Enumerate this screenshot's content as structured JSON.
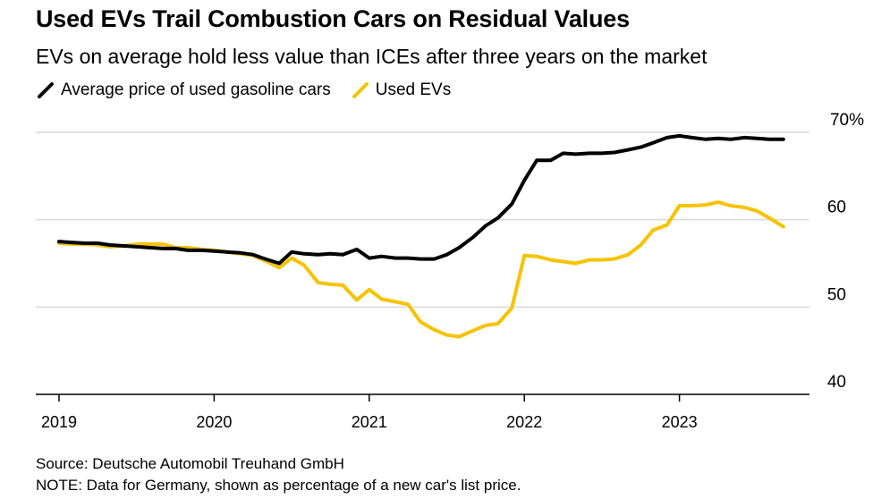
{
  "title": "Used EVs Trail Combustion Cars on Residual Values",
  "subtitle": "EVs on average hold less value than ICEs after three years on the market",
  "source": "Source: Deutsche Automobil Treuhand GmbH",
  "note": "NOTE: Data for Germany, shown as percentage of a new car's list price.",
  "chart_data": {
    "type": "line",
    "xlim": [
      2019.0,
      2024.0
    ],
    "ylim": [
      40,
      70
    ],
    "y_ticks": [
      40,
      50,
      60,
      70
    ],
    "y_tick_labels": [
      "40",
      "50",
      "60",
      "70%"
    ],
    "x_ticks": [
      2019,
      2020,
      2021,
      2022,
      2023
    ],
    "x_tick_labels": [
      "2019",
      "2020",
      "2021",
      "2022",
      "2023"
    ],
    "grid": true,
    "legend_position": "top-left",
    "series": [
      {
        "name": "Average price of used gasoline cars",
        "color": "#000000",
        "x": [
          2019.0,
          2019.08,
          2019.17,
          2019.25,
          2019.33,
          2019.42,
          2019.5,
          2019.58,
          2019.67,
          2019.75,
          2019.83,
          2019.92,
          2020.0,
          2020.08,
          2020.17,
          2020.25,
          2020.33,
          2020.42,
          2020.5,
          2020.58,
          2020.67,
          2020.75,
          2020.83,
          2020.92,
          2021.0,
          2021.08,
          2021.17,
          2021.25,
          2021.33,
          2021.42,
          2021.5,
          2021.58,
          2021.67,
          2021.75,
          2021.83,
          2021.92,
          2022.0,
          2022.08,
          2022.17,
          2022.25,
          2022.33,
          2022.42,
          2022.5,
          2022.58,
          2022.67,
          2022.75,
          2022.83,
          2022.92,
          2023.0,
          2023.08,
          2023.17,
          2023.25,
          2023.33,
          2023.42,
          2023.5,
          2023.58,
          2023.67
        ],
        "values": [
          57.5,
          57.4,
          57.3,
          57.3,
          57.1,
          57.0,
          56.9,
          56.8,
          56.7,
          56.7,
          56.5,
          56.5,
          56.4,
          56.3,
          56.2,
          56.0,
          55.5,
          55.0,
          56.3,
          56.1,
          56.0,
          56.1,
          56.0,
          56.6,
          55.6,
          55.8,
          55.6,
          55.6,
          55.5,
          55.5,
          56.0,
          56.8,
          58.0,
          59.3,
          60.2,
          61.8,
          64.5,
          66.8,
          66.8,
          67.6,
          67.5,
          67.6,
          67.6,
          67.7,
          68.0,
          68.3,
          68.8,
          69.4,
          69.6,
          69.4,
          69.2,
          69.3,
          69.2,
          69.4,
          69.3,
          69.2,
          69.2
        ]
      },
      {
        "name": "Used EVs",
        "color": "#f5c300",
        "x": [
          2019.0,
          2019.08,
          2019.17,
          2019.25,
          2019.33,
          2019.42,
          2019.5,
          2019.58,
          2019.67,
          2019.75,
          2019.83,
          2019.92,
          2020.0,
          2020.08,
          2020.17,
          2020.25,
          2020.33,
          2020.42,
          2020.5,
          2020.58,
          2020.67,
          2020.75,
          2020.83,
          2020.92,
          2021.0,
          2021.08,
          2021.17,
          2021.25,
          2021.33,
          2021.42,
          2021.5,
          2021.58,
          2021.67,
          2021.75,
          2021.83,
          2021.92,
          2022.0,
          2022.08,
          2022.17,
          2022.25,
          2022.33,
          2022.42,
          2022.5,
          2022.58,
          2022.67,
          2022.75,
          2022.83,
          2022.92,
          2023.0,
          2023.08,
          2023.17,
          2023.25,
          2023.33,
          2023.42,
          2023.5,
          2023.58,
          2023.67
        ],
        "values": [
          57.3,
          57.2,
          57.2,
          57.1,
          56.9,
          57.0,
          57.2,
          57.2,
          57.2,
          56.8,
          56.8,
          56.6,
          56.5,
          56.3,
          56.1,
          55.9,
          55.3,
          54.5,
          55.6,
          54.8,
          52.8,
          52.6,
          52.5,
          50.8,
          52.0,
          50.9,
          50.6,
          50.3,
          48.3,
          47.4,
          46.8,
          46.6,
          47.3,
          47.9,
          48.1,
          49.9,
          55.9,
          55.8,
          55.4,
          55.2,
          55.0,
          55.4,
          55.4,
          55.5,
          56.0,
          57.1,
          58.8,
          59.4,
          61.6,
          61.6,
          61.7,
          62.0,
          61.6,
          61.4,
          61.0,
          60.2,
          59.2
        ]
      }
    ]
  }
}
